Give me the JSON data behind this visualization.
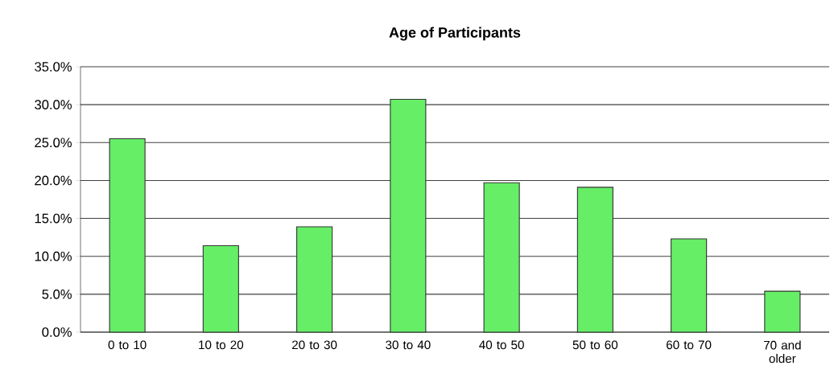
{
  "chart_data": {
    "type": "bar",
    "title": "Age of Participants",
    "categories": [
      "0 to 10",
      "10 to 20",
      "20 to 30",
      "30 to 40",
      "40 to 50",
      "50 to 60",
      "60 to 70",
      "70 and older"
    ],
    "values": [
      25.5,
      11.4,
      13.9,
      30.7,
      19.7,
      19.1,
      12.3,
      5.4
    ],
    "color": "#66ee66",
    "ylim": [
      0,
      35
    ],
    "yticks": [
      {
        "value": 0,
        "label": "0.0%"
      },
      {
        "value": 5,
        "label": "5.0%"
      },
      {
        "value": 10,
        "label": "10.0%"
      },
      {
        "value": 15,
        "label": "15.0%"
      },
      {
        "value": 20,
        "label": "20.0%"
      },
      {
        "value": 25,
        "label": "25.0%"
      },
      {
        "value": 30,
        "label": "30.0%"
      },
      {
        "value": 35,
        "label": "35.0%"
      }
    ],
    "grid": "y"
  }
}
